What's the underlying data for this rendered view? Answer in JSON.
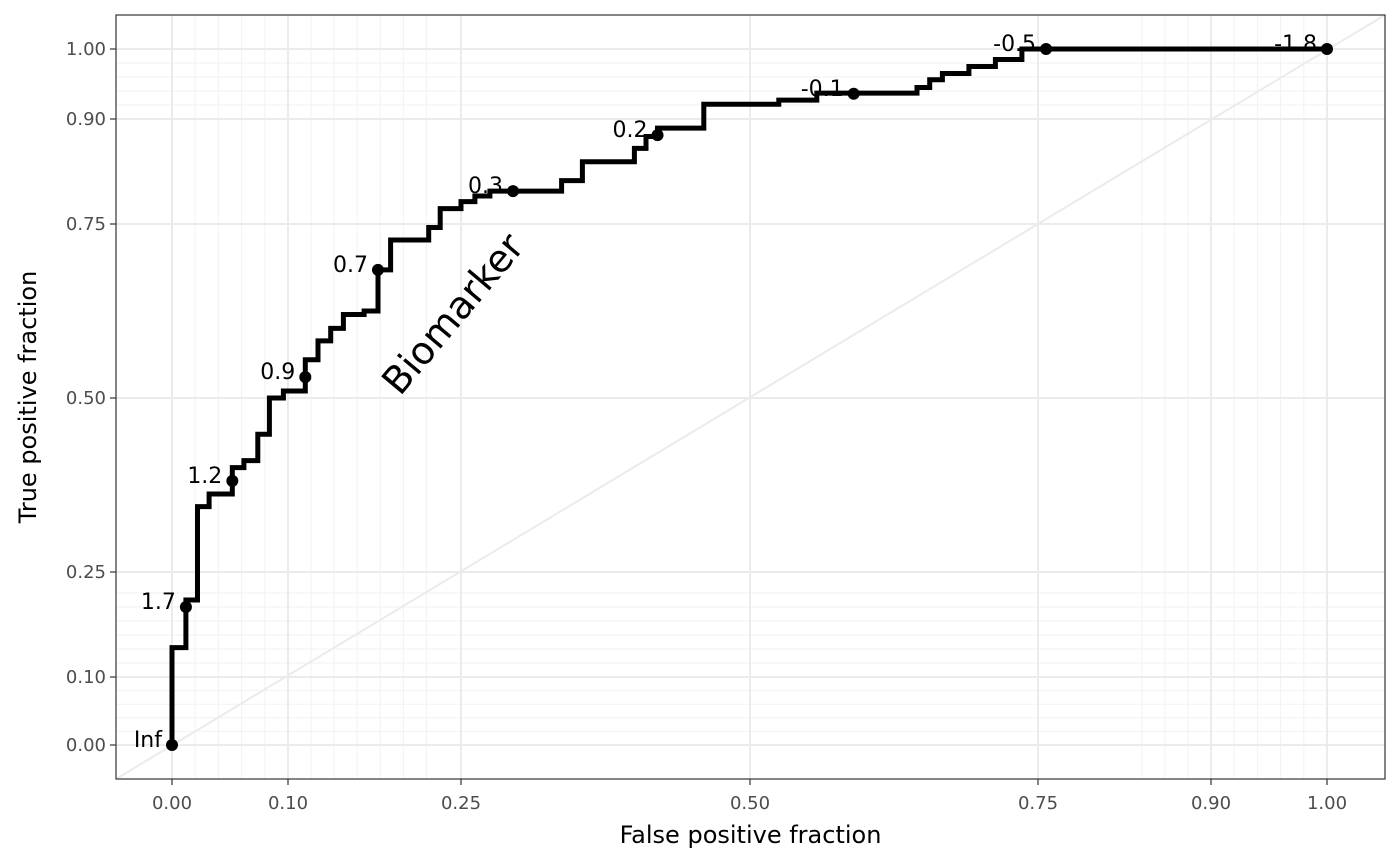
{
  "chart_data": {
    "type": "line",
    "xlabel": "False positive fraction",
    "ylabel": "True positive fraction",
    "xlim": [
      -0.049,
      1.049
    ],
    "ylim": [
      -0.049,
      1.049
    ],
    "scale": "probit-style (tick-spaced)",
    "grid": true,
    "x_ticks": [
      0.0,
      0.1,
      0.25,
      0.5,
      0.75,
      0.9,
      1.0
    ],
    "x_tick_labels": [
      "0.00",
      "0.10",
      "0.25",
      "0.50",
      "0.75",
      "0.90",
      "1.00"
    ],
    "y_ticks": [
      0.0,
      0.1,
      0.25,
      0.5,
      0.75,
      0.9,
      1.0
    ],
    "y_tick_labels": [
      "0.00",
      "0.10",
      "0.25",
      "0.50",
      "0.75",
      "0.90",
      "1.00"
    ],
    "minor_x": [
      0.02,
      0.04,
      0.06,
      0.08,
      0.12,
      0.14,
      0.16,
      0.18,
      0.2,
      0.22,
      0.84,
      0.86,
      0.88,
      0.92,
      0.94,
      0.96,
      0.98
    ],
    "minor_y": [
      0.02,
      0.04,
      0.06,
      0.08,
      0.12,
      0.14,
      0.16,
      0.18,
      0.2,
      0.22,
      0.92,
      0.94,
      0.96,
      0.98
    ],
    "reference_line": [
      [
        0,
        0
      ],
      [
        1,
        1
      ]
    ],
    "series": [
      {
        "name": "Biomarker",
        "step_curve": [
          [
            0.0,
            0.0
          ],
          [
            0.0,
            0.142
          ],
          [
            0.012,
            0.142
          ],
          [
            0.012,
            0.21
          ],
          [
            0.022,
            0.21
          ],
          [
            0.022,
            0.344
          ],
          [
            0.032,
            0.344
          ],
          [
            0.032,
            0.362
          ],
          [
            0.052,
            0.362
          ],
          [
            0.052,
            0.4
          ],
          [
            0.062,
            0.4
          ],
          [
            0.062,
            0.41
          ],
          [
            0.074,
            0.41
          ],
          [
            0.074,
            0.448
          ],
          [
            0.084,
            0.448
          ],
          [
            0.084,
            0.5
          ],
          [
            0.096,
            0.5
          ],
          [
            0.096,
            0.51
          ],
          [
            0.115,
            0.51
          ],
          [
            0.115,
            0.555
          ],
          [
            0.126,
            0.555
          ],
          [
            0.126,
            0.582
          ],
          [
            0.137,
            0.582
          ],
          [
            0.137,
            0.6
          ],
          [
            0.148,
            0.6
          ],
          [
            0.148,
            0.62
          ],
          [
            0.166,
            0.62
          ],
          [
            0.166,
            0.625
          ],
          [
            0.178,
            0.625
          ],
          [
            0.178,
            0.684
          ],
          [
            0.189,
            0.684
          ],
          [
            0.189,
            0.727
          ],
          [
            0.222,
            0.727
          ],
          [
            0.222,
            0.745
          ],
          [
            0.232,
            0.745
          ],
          [
            0.232,
            0.772
          ],
          [
            0.25,
            0.772
          ],
          [
            0.25,
            0.782
          ],
          [
            0.262,
            0.782
          ],
          [
            0.262,
            0.79
          ],
          [
            0.275,
            0.79
          ],
          [
            0.275,
            0.797
          ],
          [
            0.337,
            0.797
          ],
          [
            0.337,
            0.812
          ],
          [
            0.355,
            0.812
          ],
          [
            0.355,
            0.839
          ],
          [
            0.4,
            0.839
          ],
          [
            0.4,
            0.858
          ],
          [
            0.41,
            0.858
          ],
          [
            0.41,
            0.875
          ],
          [
            0.42,
            0.875
          ],
          [
            0.42,
            0.887
          ],
          [
            0.46,
            0.887
          ],
          [
            0.46,
            0.921
          ],
          [
            0.525,
            0.921
          ],
          [
            0.525,
            0.927
          ],
          [
            0.558,
            0.927
          ],
          [
            0.558,
            0.937
          ],
          [
            0.645,
            0.937
          ],
          [
            0.645,
            0.945
          ],
          [
            0.656,
            0.945
          ],
          [
            0.656,
            0.956
          ],
          [
            0.667,
            0.956
          ],
          [
            0.667,
            0.965
          ],
          [
            0.69,
            0.965
          ],
          [
            0.69,
            0.975
          ],
          [
            0.713,
            0.975
          ],
          [
            0.713,
            0.985
          ],
          [
            0.736,
            0.985
          ],
          [
            0.736,
            1.0
          ],
          [
            1.0,
            1.0
          ]
        ],
        "cutoffs": [
          {
            "label": "Inf",
            "fpf": 0.0,
            "tpf": 0.0
          },
          {
            "label": "1.7",
            "fpf": 0.012,
            "tpf": 0.2
          },
          {
            "label": "1.2",
            "fpf": 0.052,
            "tpf": 0.381
          },
          {
            "label": "0.9",
            "fpf": 0.115,
            "tpf": 0.53
          },
          {
            "label": "0.7",
            "fpf": 0.178,
            "tpf": 0.684
          },
          {
            "label": "0.3",
            "fpf": 0.295,
            "tpf": 0.797
          },
          {
            "label": "0.2",
            "fpf": 0.42,
            "tpf": 0.877
          },
          {
            "label": "-0.1",
            "fpf": 0.59,
            "tpf": 0.936
          },
          {
            "label": "-0.5",
            "fpf": 0.757,
            "tpf": 1.0
          },
          {
            "label": "-1.8",
            "fpf": 1.0,
            "tpf": 1.0
          }
        ]
      }
    ],
    "series_label": "Biomarker"
  }
}
